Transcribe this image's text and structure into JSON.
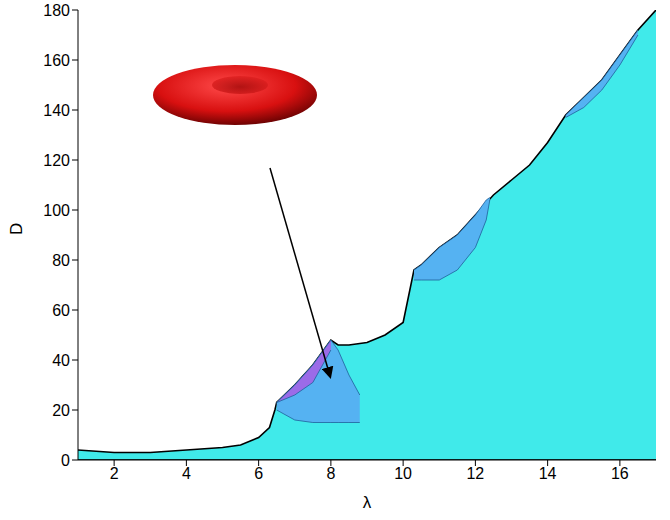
{
  "chart_data": {
    "type": "area",
    "x_label": "λ",
    "y_label": "D",
    "xlim": [
      1,
      17
    ],
    "xticks": [
      2,
      4,
      6,
      8,
      10,
      12,
      14,
      16
    ],
    "ylim": [
      0,
      180
    ],
    "yticks": [
      0,
      20,
      40,
      60,
      80,
      100,
      120,
      140,
      160,
      180
    ],
    "series": [
      {
        "color": "#40eaea",
        "x": [
          1,
          2,
          3,
          4,
          5,
          5.5,
          6,
          6.3,
          6.45,
          6.5,
          7,
          7.5,
          8,
          8.2,
          8.5,
          9,
          9.5,
          10,
          10.3,
          10.5,
          11,
          11.5,
          12,
          12.5,
          13,
          13.5,
          14,
          14.5,
          15,
          15.5,
          16,
          16.5,
          17
        ],
        "values": [
          [
            0,
            4
          ],
          [
            0,
            3
          ],
          [
            0,
            3
          ],
          [
            0,
            4
          ],
          [
            0,
            5
          ],
          [
            0,
            6
          ],
          [
            0,
            9
          ],
          [
            0,
            13
          ],
          [
            0,
            20
          ],
          [
            0,
            23
          ],
          [
            0,
            30
          ],
          [
            0,
            38
          ],
          [
            0,
            48
          ],
          [
            0,
            46
          ],
          [
            0,
            46
          ],
          [
            0,
            47
          ],
          [
            0,
            50
          ],
          [
            0,
            55
          ],
          [
            0,
            76
          ],
          [
            0,
            78
          ],
          [
            0,
            85
          ],
          [
            0,
            90
          ],
          [
            0,
            98
          ],
          [
            0,
            106
          ],
          [
            0,
            112
          ],
          [
            0,
            118
          ],
          [
            0,
            127
          ],
          [
            0,
            138
          ],
          [
            0,
            145
          ],
          [
            0,
            152
          ],
          [
            0,
            162
          ],
          [
            0,
            172
          ],
          [
            0,
            180
          ]
        ]
      },
      {
        "color": "#55b2f2",
        "x": [
          6.5,
          7,
          7.5,
          8,
          8.2,
          8.5,
          8.8
        ],
        "values": [
          [
            20,
            23
          ],
          [
            16,
            30
          ],
          [
            15,
            38
          ],
          [
            15,
            48
          ],
          [
            15,
            44
          ],
          [
            15,
            34
          ],
          [
            15,
            26
          ]
        ]
      },
      {
        "color": "#9b6be8",
        "x": [
          6.5,
          7,
          7.5,
          8
        ],
        "values": [
          [
            23,
            23
          ],
          [
            26,
            30
          ],
          [
            31,
            38
          ],
          [
            44,
            48
          ]
        ]
      },
      {
        "color": "#55b2f2",
        "x": [
          10.3,
          10.5,
          11,
          11.5,
          12,
          12.3,
          12.4
        ],
        "values": [
          [
            72,
            76
          ],
          [
            72,
            78
          ],
          [
            72,
            85
          ],
          [
            76,
            90
          ],
          [
            85,
            98
          ],
          [
            96,
            104
          ],
          [
            104,
            105
          ]
        ]
      },
      {
        "color": "#55b2f2",
        "x": [
          14.5,
          15,
          15.5,
          16,
          16.5
        ],
        "values": [
          [
            137,
            138
          ],
          [
            141,
            145
          ],
          [
            148,
            152
          ],
          [
            158,
            162
          ],
          [
            170,
            172
          ]
        ]
      }
    ]
  }
}
